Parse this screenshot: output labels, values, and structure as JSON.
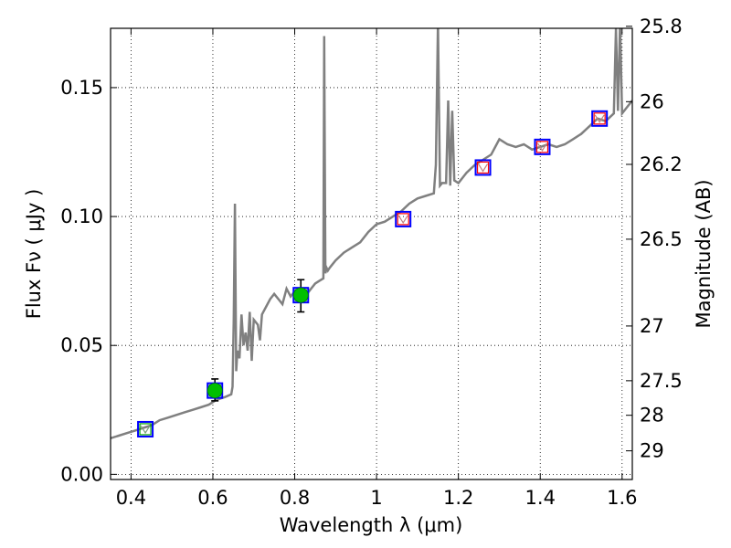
{
  "chart_data": {
    "type": "line",
    "xlabel": "Wavelength  λ (μm)",
    "ylabel": "Flux  Fν  ( μJy )",
    "ylabel_right": "Magnitude (AB)",
    "xlim": [
      0.35,
      1.625
    ],
    "ylim": [
      -0.002,
      0.173
    ],
    "x_ticks": [
      0.4,
      0.6,
      0.8,
      1.0,
      1.2,
      1.4,
      1.6
    ],
    "x_tick_labels": [
      "0.4",
      "0.6",
      "0.8",
      "1",
      "1.2",
      "1.4",
      "1.6"
    ],
    "y_ticks": [
      0.0,
      0.05,
      0.1,
      0.15
    ],
    "y_tick_labels": [
      "0.00",
      "0.05",
      "0.10",
      "0.15"
    ],
    "right_ticks": [
      {
        "mag": 25.8,
        "label": "25.8"
      },
      {
        "mag": 26.0,
        "label": "26"
      },
      {
        "mag": 26.2,
        "label": "26.2"
      },
      {
        "mag": 26.5,
        "label": "26.5"
      },
      {
        "mag": 27.0,
        "label": "27"
      },
      {
        "mag": 27.5,
        "label": "27.5"
      },
      {
        "mag": 28.0,
        "label": "28"
      },
      {
        "mag": 29.0,
        "label": "29"
      }
    ],
    "grid": true,
    "colors": {
      "spectrum": "#808080",
      "observed_point": "#00c000",
      "model_box": "#0000ff",
      "filter_green": "#00a000",
      "filter_red": "#ff0000",
      "filter_red_inner": "#c08080",
      "errorbar": "#000000"
    },
    "series": [
      {
        "type": "line",
        "x": [
          0.35,
          0.37,
          0.39,
          0.41,
          0.43,
          0.45,
          0.47,
          0.49,
          0.51,
          0.53,
          0.55,
          0.57,
          0.59,
          0.61,
          0.63,
          0.645,
          0.648,
          0.651,
          0.654,
          0.657,
          0.66,
          0.665,
          0.67,
          0.675,
          0.68,
          0.685,
          0.69,
          0.695,
          0.7,
          0.71,
          0.715,
          0.72,
          0.73,
          0.74,
          0.75,
          0.76,
          0.77,
          0.78,
          0.79,
          0.8,
          0.81,
          0.82,
          0.83,
          0.84,
          0.85,
          0.86,
          0.87,
          0.872,
          0.875,
          0.878,
          0.881,
          0.885,
          0.89,
          0.9,
          0.92,
          0.94,
          0.96,
          0.98,
          1.0,
          1.02,
          1.04,
          1.06,
          1.08,
          1.1,
          1.12,
          1.14,
          1.145,
          1.15,
          1.155,
          1.16,
          1.17,
          1.175,
          1.18,
          1.185,
          1.19,
          1.2,
          1.22,
          1.24,
          1.26,
          1.28,
          1.29,
          1.3,
          1.32,
          1.34,
          1.36,
          1.38,
          1.4,
          1.42,
          1.44,
          1.46,
          1.48,
          1.5,
          1.52,
          1.54,
          1.56,
          1.58,
          1.585,
          1.59,
          1.595,
          1.6,
          1.61,
          1.625
        ],
        "y": [
          0.014,
          0.015,
          0.016,
          0.017,
          0.018,
          0.019,
          0.021,
          0.022,
          0.023,
          0.024,
          0.025,
          0.026,
          0.027,
          0.029,
          0.03,
          0.031,
          0.034,
          0.06,
          0.105,
          0.04,
          0.048,
          0.045,
          0.062,
          0.05,
          0.055,
          0.048,
          0.063,
          0.044,
          0.06,
          0.058,
          0.052,
          0.062,
          0.065,
          0.068,
          0.07,
          0.068,
          0.066,
          0.072,
          0.069,
          0.071,
          0.07,
          0.071,
          0.07,
          0.072,
          0.074,
          0.075,
          0.076,
          0.17,
          0.078,
          0.08,
          0.079,
          0.08,
          0.081,
          0.083,
          0.086,
          0.088,
          0.09,
          0.094,
          0.097,
          0.098,
          0.1,
          0.102,
          0.105,
          0.107,
          0.108,
          0.109,
          0.12,
          0.175,
          0.112,
          0.113,
          0.113,
          0.145,
          0.112,
          0.141,
          0.114,
          0.113,
          0.117,
          0.12,
          0.122,
          0.124,
          0.127,
          0.13,
          0.128,
          0.127,
          0.128,
          0.126,
          0.127,
          0.128,
          0.127,
          0.128,
          0.13,
          0.132,
          0.135,
          0.138,
          0.137,
          0.14,
          0.173,
          0.141,
          0.175,
          0.14,
          0.142,
          0.145
        ]
      },
      {
        "type": "scatter",
        "name": "observed",
        "x": [
          0.605,
          0.815
        ],
        "y": [
          0.0325,
          0.0695
        ],
        "err_low": [
          0.0285,
          0.063
        ],
        "err_high": [
          0.037,
          0.0755
        ]
      },
      {
        "type": "scatter",
        "name": "model",
        "x": [
          0.435,
          0.605,
          0.815,
          1.065,
          1.26,
          1.405,
          1.545
        ],
        "y": [
          0.0175,
          0.0325,
          0.0695,
          0.099,
          0.119,
          0.127,
          0.138
        ],
        "filter_color": [
          "green",
          "green",
          "green",
          "red",
          "red",
          "red",
          "red"
        ]
      }
    ]
  }
}
